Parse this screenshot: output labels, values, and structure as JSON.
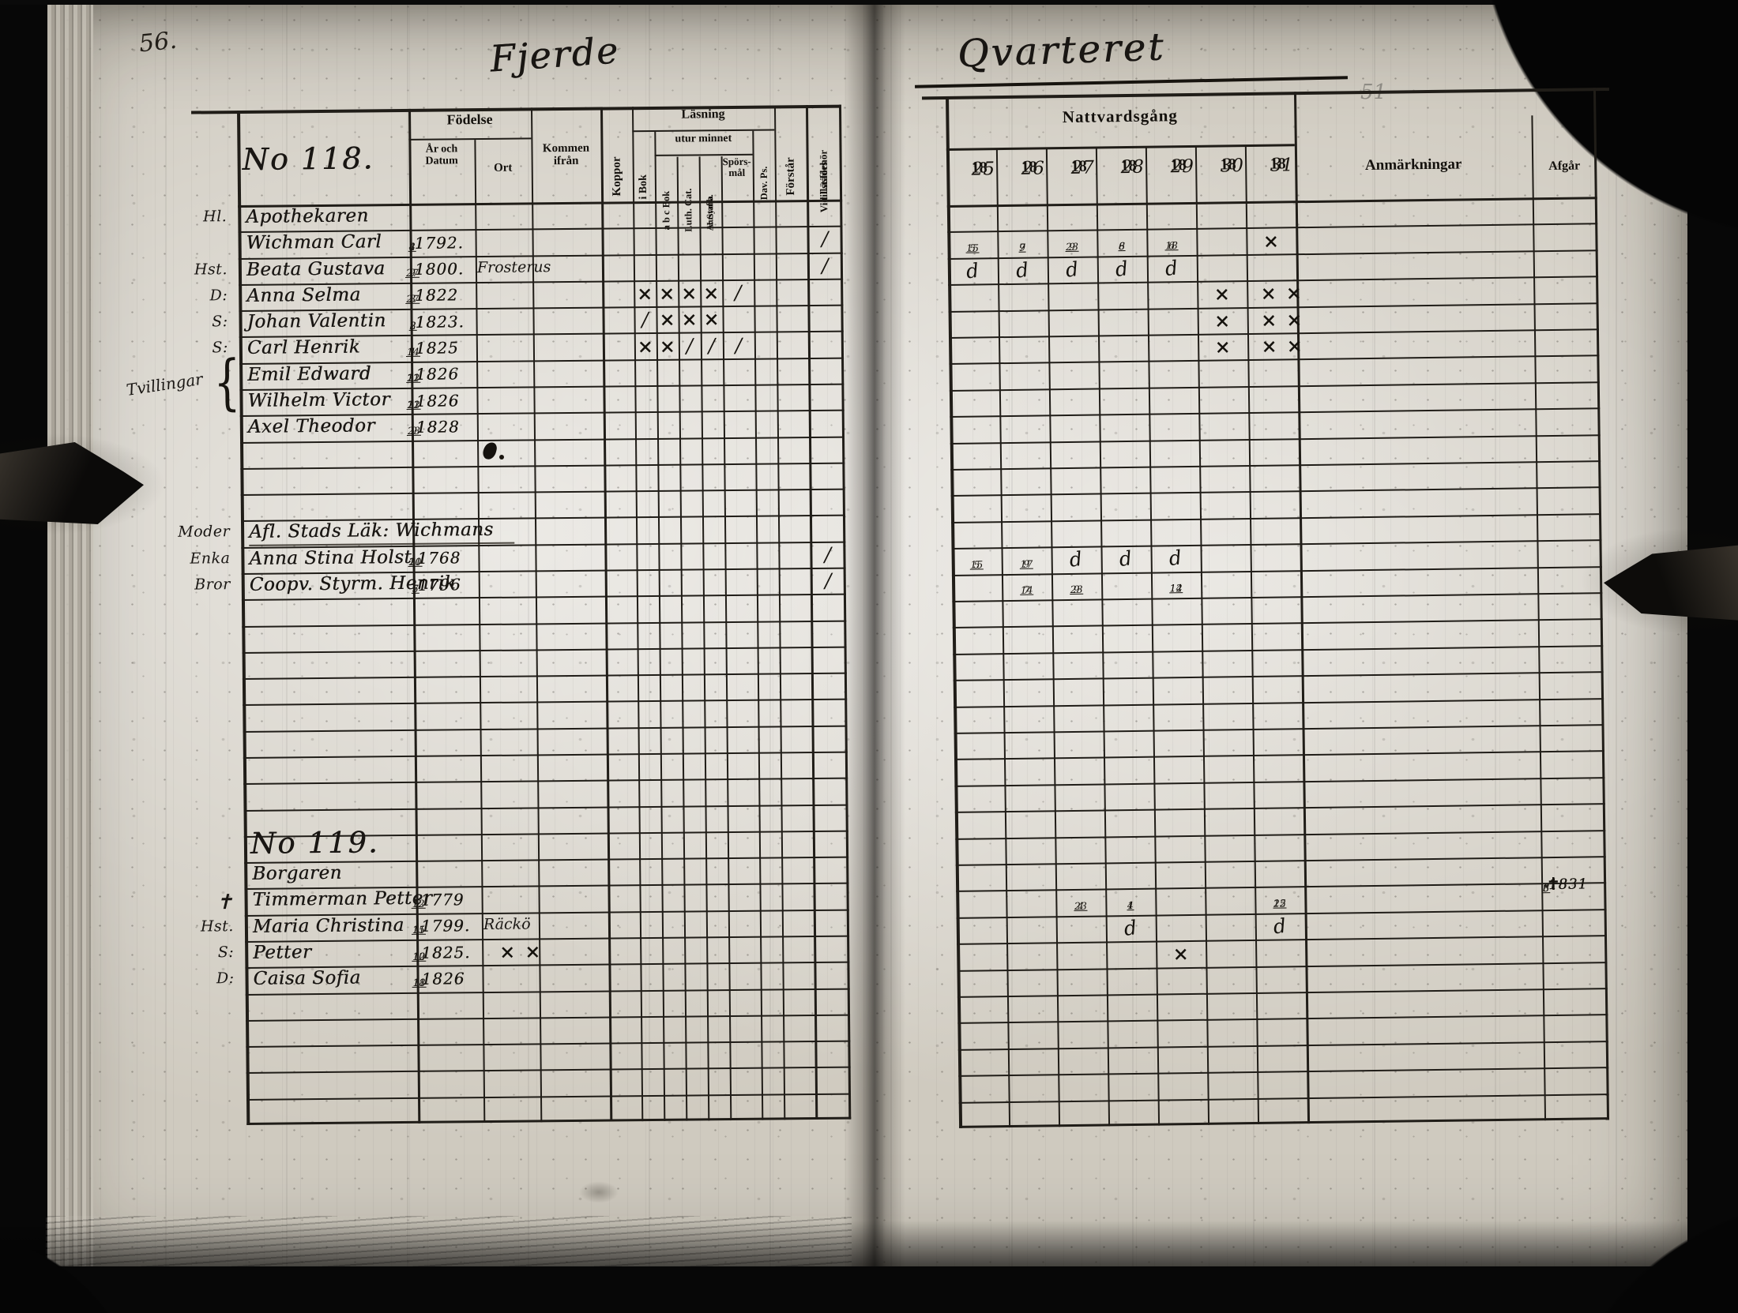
{
  "scan": {
    "page_number": "56.",
    "corner_note": "51",
    "quarter_title_left": "Fjerde",
    "quarter_title_right": "Qvarteret"
  },
  "left_table": {
    "no118_label": "No 118.",
    "headers": {
      "fodelse": "Födelse",
      "ar_och_datum": "År och Datum",
      "ort": "Ort",
      "kommen_ifran": "Kommen ifrån",
      "koppor": "Koppor",
      "lasning": "Läsning",
      "i_bok": "i Bok",
      "utur_minnet": "utur minnet",
      "abc_bok": "a b c Bok",
      "luth_cat": "Luth. Cat.",
      "a_symb_line1": "A: Symb.",
      "a_symb_line2": "Hustafla",
      "sporsmal": "Spörs- mål",
      "dav_ps": "Dav. Ps.",
      "forstar": "Förstår",
      "vid_lasforhor_line1": "Vid Läsförhör",
      "vid_lasforhor_line2": "tillstädes"
    },
    "rows": [
      {
        "margin": "Hl.",
        "name": "Apothekaren",
        "style": "occ"
      },
      {
        "name": "Wichman Carl",
        "date": "8/4 1792.",
        "marks": {
          "vid": "/"
        }
      },
      {
        "margin": "Hst.",
        "name": "Beata Gustava",
        "date": "27/9 1800.",
        "ort": "Frosterus",
        "marks": {
          "vid": "/"
        }
      },
      {
        "margin": "D:",
        "name": "Anna Selma",
        "date": "27/3 1822",
        "marks": {
          "ibok": "×",
          "abc": "×",
          "luth": "×",
          "asymb": "×",
          "spors": "/"
        }
      },
      {
        "margin": "S:",
        "name": "Johan Valentin",
        "date": "2/8 1823.",
        "marks": {
          "ibok": "/",
          "abc": "×",
          "luth": "×",
          "asymb": "×"
        }
      },
      {
        "margin": "S:",
        "name": "Carl Henrik",
        "date": "14/1 1825",
        "marks": {
          "ibok": "×",
          "abc": "×",
          "luth": "/",
          "asymb": "/",
          "spors": "/"
        }
      },
      {
        "name": "Emil Edward",
        "date": "21/12 1826",
        "twin": true
      },
      {
        "margin": "Tvillingar",
        "name": "Wilhelm Victor",
        "date": "21/12 1826",
        "twin": true
      },
      {
        "name": "Axel Theodor",
        "date": "23/9 1828"
      },
      {},
      {},
      {},
      {
        "margin": "Moder",
        "name": "Afl. Stads Läk: Wichmans",
        "style": "wide"
      },
      {
        "margin": "Enka",
        "name": "Anna Stina Holst",
        "date": "21/10 1768",
        "marks": {
          "vid": "/"
        }
      },
      {
        "margin": "Bror",
        "name": "Coopv. Styrm. Henrik",
        "date": "5/7 1796",
        "marks": {
          "vid": "/"
        }
      },
      {},
      {},
      {},
      {},
      {},
      {},
      {},
      {},
      {},
      {
        "name": "No 119.",
        "style": "big"
      },
      {
        "name": "Borgaren",
        "style": "occ"
      },
      {
        "margin": "✝",
        "name": "Timmerman Petter",
        "date": "12/2 1779"
      },
      {
        "margin": "Hst.",
        "name": "Maria Christina",
        "date": "15/11 1799.",
        "ort": "Räckö"
      },
      {
        "margin": "S:",
        "name": "Petter",
        "date": "12/10 1825.",
        "marks": {
          "ort": "××"
        }
      },
      {
        "margin": "D:",
        "name": "Caisa Sofia",
        "date": "18/11 1826"
      },
      {},
      {},
      {},
      {},
      {}
    ]
  },
  "right_table": {
    "headers": {
      "nattvardsgang": "Nattvardsgång",
      "years": [
        "1825",
        "1826",
        "1827",
        "1828",
        "1829",
        "1830",
        "1831"
      ],
      "anmarkningar": "Anmärkningar",
      "afgar": "Afgår"
    },
    "rows": [
      {},
      {
        "cells": [
          "15/5",
          "7/9",
          "23/9",
          "8/6",
          "18/6",
          "",
          "×"
        ]
      },
      {
        "cells": [
          "d",
          "d",
          "d",
          "d",
          "d",
          "",
          ""
        ]
      },
      {
        "cells": [
          "",
          "",
          "",
          "",
          "",
          "×",
          "××"
        ]
      },
      {
        "cells": [
          "",
          "",
          "",
          "",
          "",
          "×",
          "××"
        ]
      },
      {
        "cells": [
          "",
          "",
          "",
          "",
          "",
          "×",
          "××"
        ]
      },
      {},
      {},
      {},
      {},
      {},
      {},
      {},
      {
        "cells": [
          "15/5",
          "17/9",
          "d",
          "d",
          "d",
          "",
          ""
        ]
      },
      {
        "cells": [
          "",
          "14/7",
          "23/9",
          "",
          "14/12",
          "",
          ""
        ]
      },
      {},
      {},
      {},
      {},
      {},
      {},
      {},
      {},
      {},
      {},
      {},
      {
        "cells": [
          "",
          "",
          "23/4",
          "1/4",
          "",
          "",
          "25/12"
        ],
        "afgar": "✝ 6/3 1831"
      },
      {
        "cells": [
          "",
          "",
          "",
          "d",
          "",
          "",
          "d"
        ]
      },
      {
        "cells": [
          "",
          "",
          "",
          "",
          "×",
          "",
          ""
        ]
      },
      {},
      {},
      {},
      {},
      {},
      {}
    ]
  }
}
